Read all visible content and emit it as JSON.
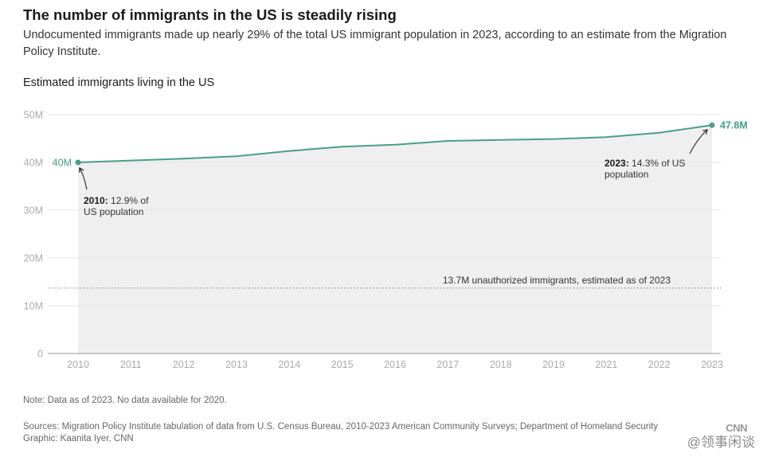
{
  "header": {
    "title": "The number of immigrants in the US is steadily rising",
    "subtitle": "Undocumented immigrants made up nearly 29% of the total US immigrant population in 2023, according to an estimate from the Migration Policy Institute.",
    "chart_heading": "Estimated immigrants living in the US"
  },
  "footer": {
    "note": "Note: Data as of 2023. No data available for 2020.",
    "sources": "Sources: Migration Policy Institute tabulation of data from U.S. Census Bureau, 2010-2023 American Community Surveys; Department of Homeland Security",
    "credit": "Graphic: Kaanita Iyer, CNN",
    "logo": "CNN",
    "watermark": "@领事闲谈"
  },
  "colors": {
    "line": "#4a9e8a",
    "area": "#efefef",
    "grid": "#e6e6e6",
    "tick_text": "#aaaaaa",
    "axis": "#999999"
  },
  "chart_data": {
    "type": "area",
    "x": [
      "2010",
      "2011",
      "2012",
      "2013",
      "2014",
      "2015",
      "2016",
      "2017",
      "2018",
      "2019",
      "2021",
      "2022",
      "2023"
    ],
    "values": [
      40.0,
      40.4,
      40.8,
      41.3,
      42.4,
      43.3,
      43.7,
      44.5,
      44.7,
      44.9,
      45.3,
      46.2,
      47.8
    ],
    "y_ticks": [
      "0",
      "10M",
      "20M",
      "30M",
      "40M",
      "50M"
    ],
    "ylim": [
      0,
      50
    ],
    "grid": true,
    "start_label": "40M",
    "end_label": "47.8M",
    "reference_line": {
      "value": 13.7,
      "label": "13.7M unauthorized immigrants, estimated as of 2023"
    },
    "annotations": [
      {
        "year": "2010",
        "bold": "2010:",
        "text": "12.9% of",
        "text2": "US population"
      },
      {
        "year": "2023",
        "bold": "2023:",
        "text": "14.3% of US",
        "text2": "population"
      }
    ]
  }
}
